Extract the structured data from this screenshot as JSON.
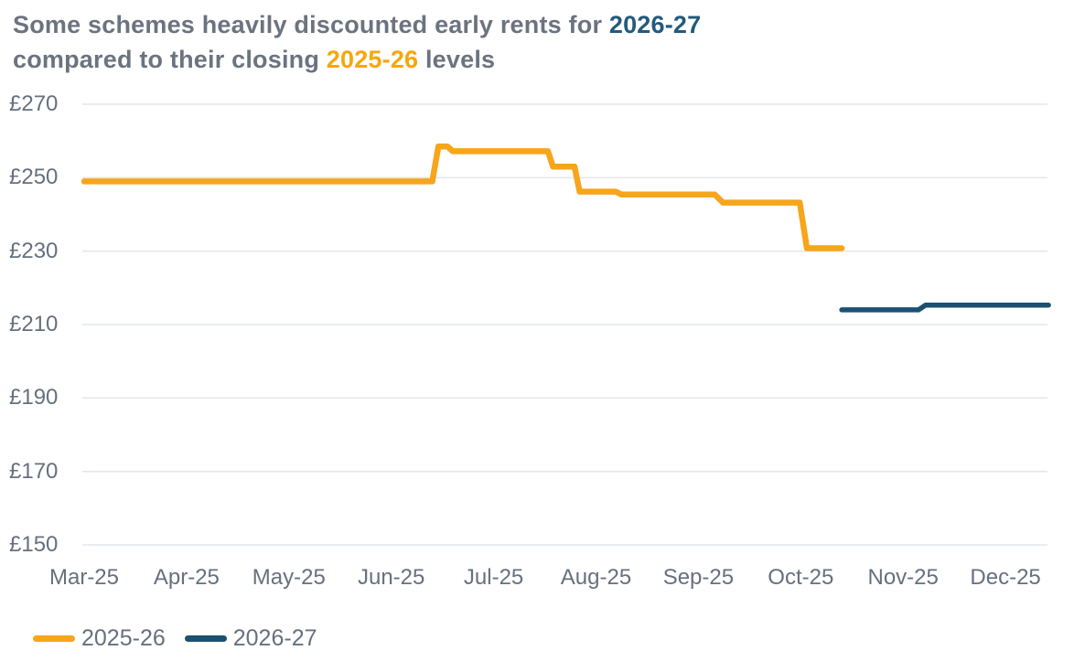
{
  "title": {
    "line1_prefix": "Some schemes heavily discounted early rents for ",
    "line1_accent": "2026-27",
    "line2_prefix": "compared to their closing ",
    "line2_accent": "2025-26",
    "line2_suffix": " levels"
  },
  "colors": {
    "heading_gray": "#6b7380",
    "title_blue": "#235a7d",
    "title_orange": "#f6a70a",
    "series_orange": "#f7a51b",
    "series_navy": "#1b5170",
    "grid": "#e4e7ea",
    "axis_label": "#66707e",
    "background": "#ffffff"
  },
  "chart_data": {
    "type": "line",
    "subtype": "step",
    "title": "Some schemes heavily discounted early rents for 2026-27 compared to their closing 2025-26 levels",
    "xlabel": "",
    "ylabel": "",
    "y_tick_labels": [
      "£270",
      "£250",
      "£230",
      "£210",
      "£190",
      "£170",
      "£150"
    ],
    "y_tick_values": [
      270,
      250,
      230,
      210,
      190,
      170,
      150
    ],
    "ylim": [
      150,
      270
    ],
    "x_categories": [
      "Mar-25",
      "Apr-25",
      "May-25",
      "Jun-25",
      "Jul-25",
      "Aug-25",
      "Sep-25",
      "Oct-25",
      "Nov-25",
      "Dec-25"
    ],
    "xlim_month_offsets": [
      0,
      9.42
    ],
    "grid": "horizontal",
    "legend_position": "bottom-left",
    "legend": [
      "2025-26",
      "2026-27"
    ],
    "series": [
      {
        "name": "2025-26",
        "color_key": "series_orange",
        "stroke_width": 6.5,
        "points_month_value": [
          [
            0.0,
            249.0
          ],
          [
            3.4,
            249.0
          ],
          [
            3.46,
            258.5
          ],
          [
            3.55,
            258.5
          ],
          [
            3.6,
            257.2
          ],
          [
            4.53,
            257.2
          ],
          [
            4.58,
            253.0
          ],
          [
            4.79,
            253.0
          ],
          [
            4.84,
            246.2
          ],
          [
            5.19,
            246.2
          ],
          [
            5.25,
            245.4
          ],
          [
            6.16,
            245.4
          ],
          [
            6.24,
            243.2
          ],
          [
            6.99,
            243.2
          ],
          [
            7.06,
            230.8
          ],
          [
            7.4,
            230.8
          ]
        ]
      },
      {
        "name": "2026-27",
        "color_key": "series_navy",
        "stroke_width": 5.5,
        "points_month_value": [
          [
            7.4,
            214.0
          ],
          [
            8.15,
            214.0
          ],
          [
            8.22,
            215.3
          ],
          [
            9.42,
            215.3
          ]
        ]
      }
    ]
  }
}
